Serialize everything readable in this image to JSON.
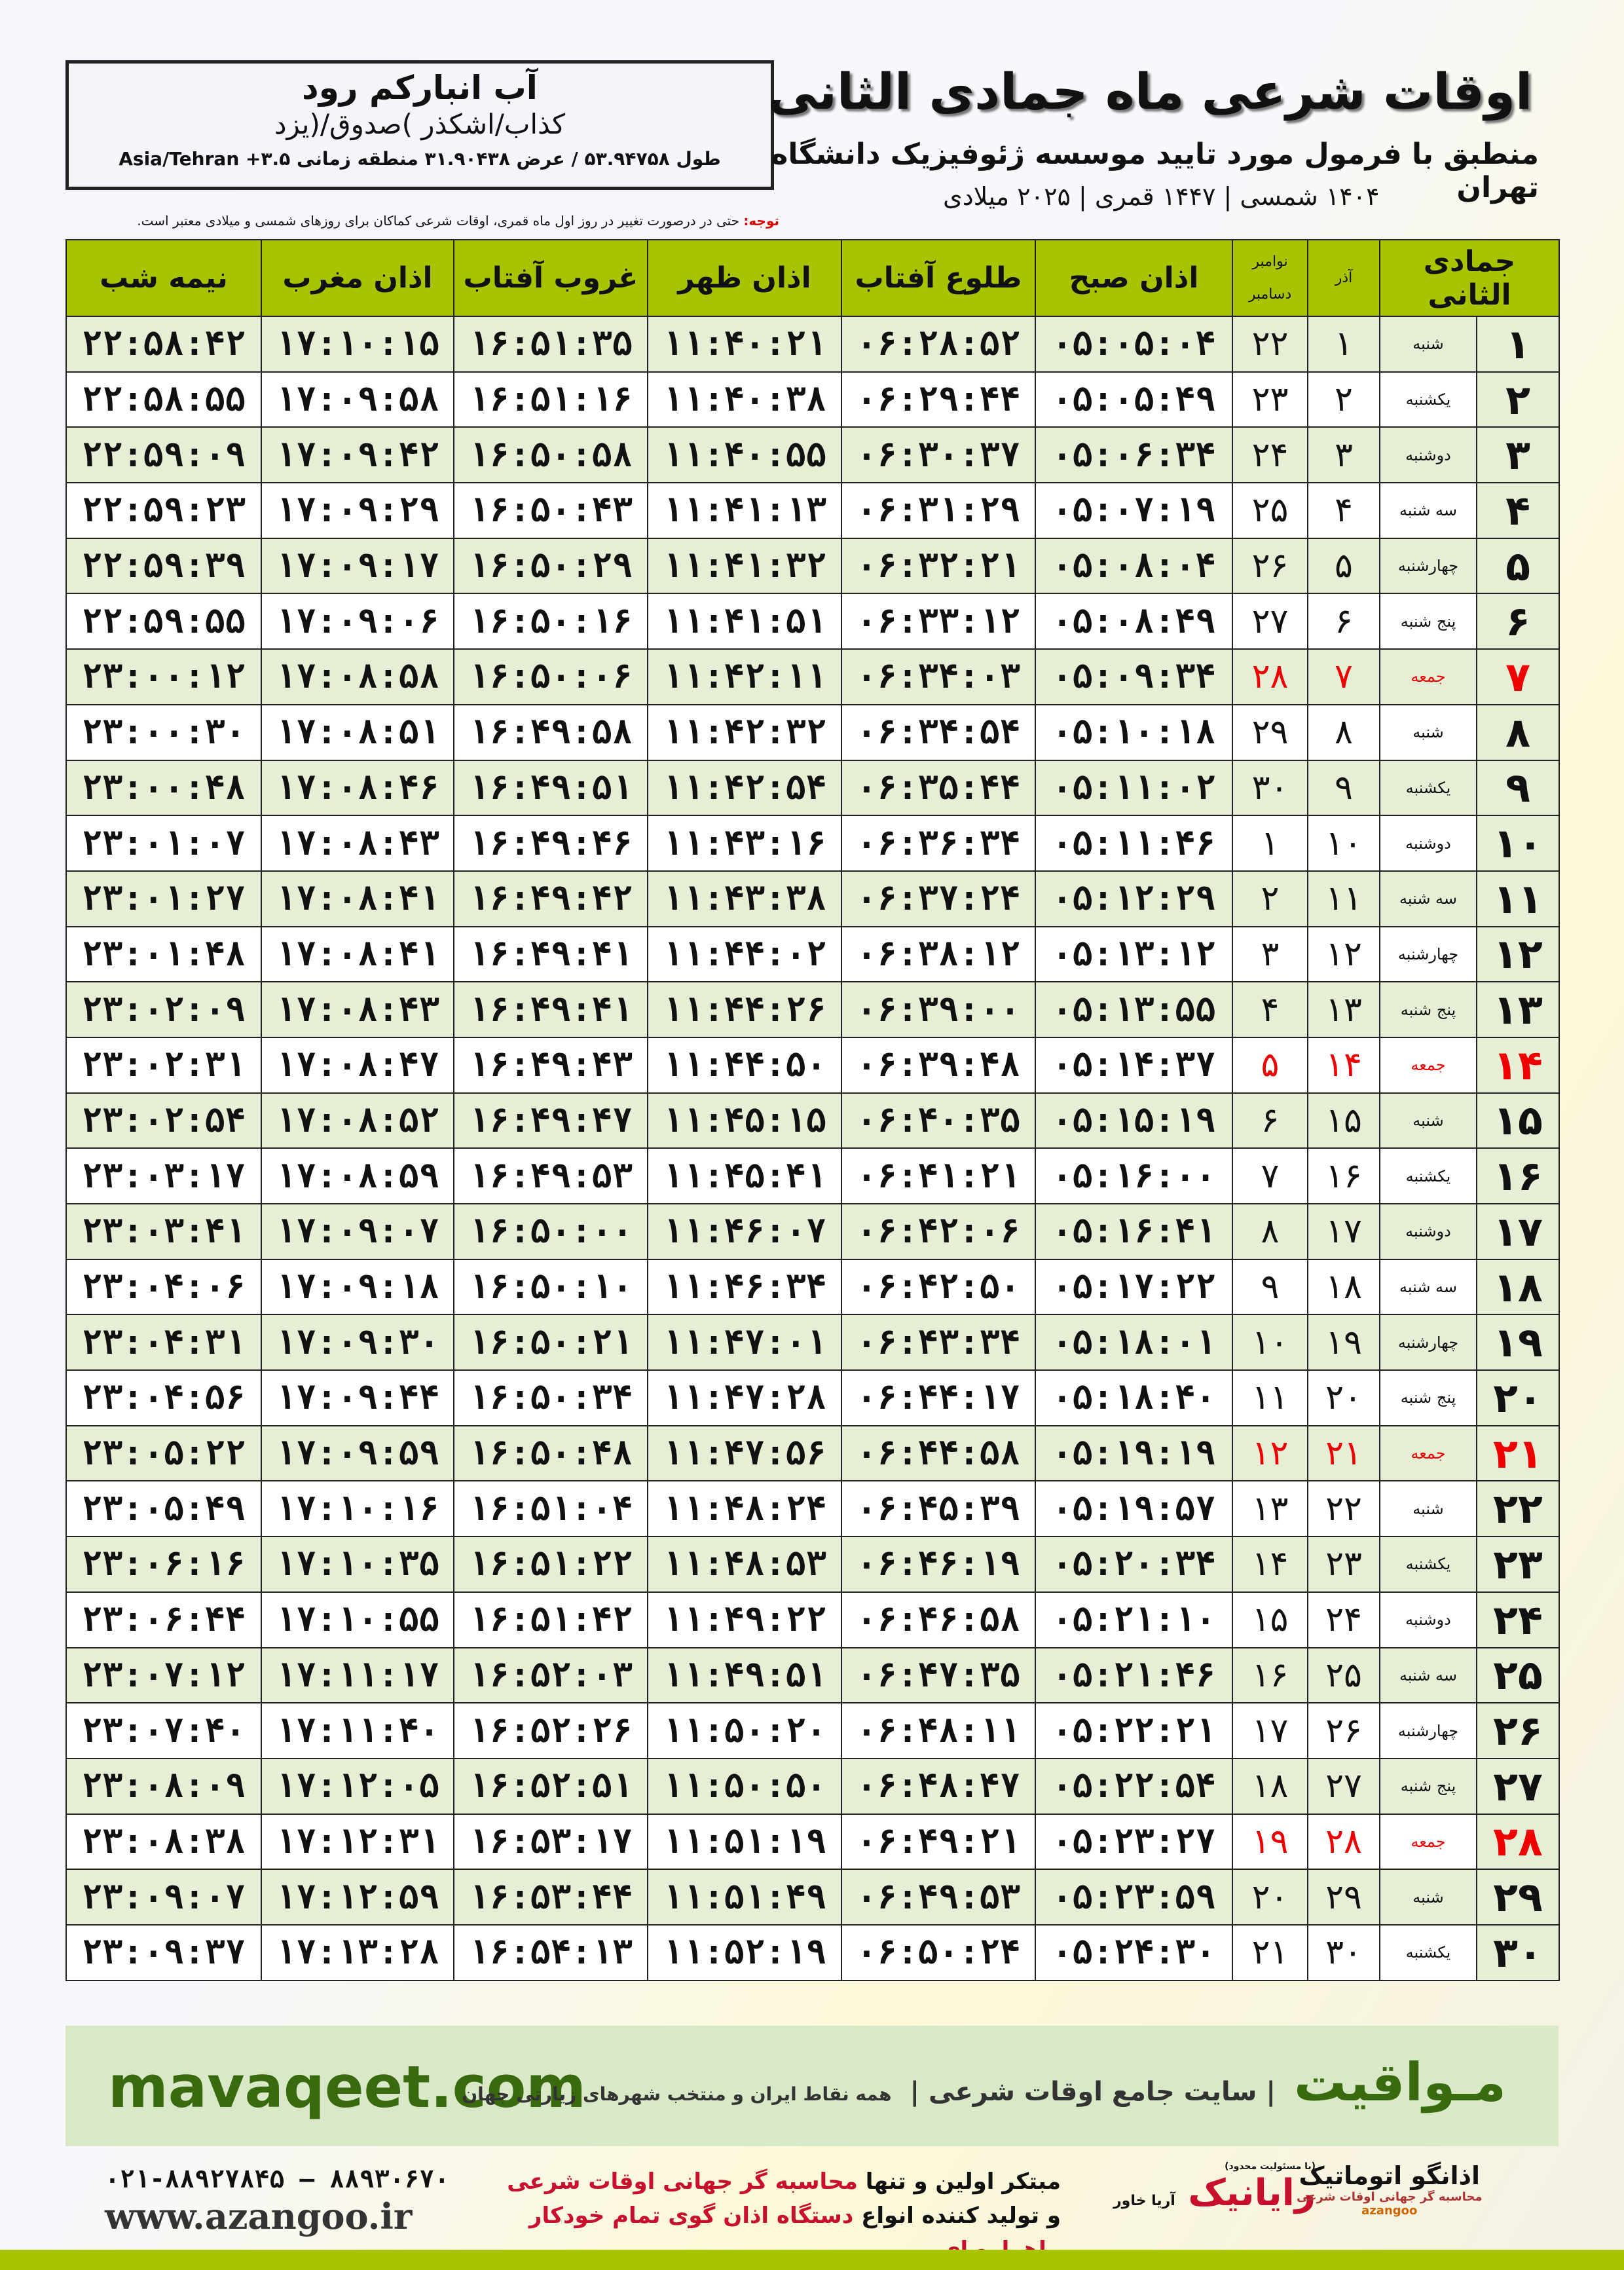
{
  "location": {
    "name": "آب انبارکم رود",
    "region": "کذاب/اشکذر )صدوق/(یزد",
    "coords": "طول ۵۳.۹۴۷۵۸ / عرض ۳۱.۹۰۴۳۸ منطقه زمانی ۳.۵+ Asia/Tehran"
  },
  "header": {
    "title": "اوقات شرعی ماه جمادی الثانی",
    "subtitle": "منطبق با فرمول مورد تایید موسسه ژئوفیزیک دانشگاه تهران",
    "years": "۱۴۰۴ شمسی | ۱۴۴۷ قمری | ۲۰۲۵ میلادی",
    "note_label": "توجه:",
    "note": " حتی در درصورت تغییر در روز اول ماه قمری، اوقات شرعی کماکان برای روزهای شمسی و میلادی معتبر است."
  },
  "colors": {
    "header_green": "#a8c400",
    "friday": "#e00000",
    "row_alt": "#e6efd6"
  },
  "table": {
    "columns": [
      "جمادی الثانی",
      "آذر",
      "نوامبر",
      "دسامبر",
      "اذان صبح",
      "طلوع آفتاب",
      "اذان ظهر",
      "غروب آفتاب",
      "اذان مغرب",
      "نیمه شب"
    ],
    "rows": [
      [
        "۱",
        "شنبه",
        "۱",
        "۲۲",
        "۰۵:۰۵:۰۴",
        "۰۶:۲۸:۵۲",
        "۱۱:۴۰:۲۱",
        "۱۶:۵۱:۳۵",
        "۱۷:۱۰:۱۵",
        "۲۲:۵۸:۴۲"
      ],
      [
        "۲",
        "یکشنبه",
        "۲",
        "۲۳",
        "۰۵:۰۵:۴۹",
        "۰۶:۲۹:۴۴",
        "۱۱:۴۰:۳۸",
        "۱۶:۵۱:۱۶",
        "۱۷:۰۹:۵۸",
        "۲۲:۵۸:۵۵"
      ],
      [
        "۳",
        "دوشنبه",
        "۳",
        "۲۴",
        "۰۵:۰۶:۳۴",
        "۰۶:۳۰:۳۷",
        "۱۱:۴۰:۵۵",
        "۱۶:۵۰:۵۸",
        "۱۷:۰۹:۴۲",
        "۲۲:۵۹:۰۹"
      ],
      [
        "۴",
        "سه شنبه",
        "۴",
        "۲۵",
        "۰۵:۰۷:۱۹",
        "۰۶:۳۱:۲۹",
        "۱۱:۴۱:۱۳",
        "۱۶:۵۰:۴۳",
        "۱۷:۰۹:۲۹",
        "۲۲:۵۹:۲۳"
      ],
      [
        "۵",
        "چهارشنبه",
        "۵",
        "۲۶",
        "۰۵:۰۸:۰۴",
        "۰۶:۳۲:۲۱",
        "۱۱:۴۱:۳۲",
        "۱۶:۵۰:۲۹",
        "۱۷:۰۹:۱۷",
        "۲۲:۵۹:۳۹"
      ],
      [
        "۶",
        "پنج شنبه",
        "۶",
        "۲۷",
        "۰۵:۰۸:۴۹",
        "۰۶:۳۳:۱۲",
        "۱۱:۴۱:۵۱",
        "۱۶:۵۰:۱۶",
        "۱۷:۰۹:۰۶",
        "۲۲:۵۹:۵۵"
      ],
      [
        "۷",
        "جمعه",
        "۷",
        "۲۸",
        "۰۵:۰۹:۳۴",
        "۰۶:۳۴:۰۳",
        "۱۱:۴۲:۱۱",
        "۱۶:۵۰:۰۶",
        "۱۷:۰۸:۵۸",
        "۲۳:۰۰:۱۲"
      ],
      [
        "۸",
        "شنبه",
        "۸",
        "۲۹",
        "۰۵:۱۰:۱۸",
        "۰۶:۳۴:۵۴",
        "۱۱:۴۲:۳۲",
        "۱۶:۴۹:۵۸",
        "۱۷:۰۸:۵۱",
        "۲۳:۰۰:۳۰"
      ],
      [
        "۹",
        "یکشنبه",
        "۹",
        "۳۰",
        "۰۵:۱۱:۰۲",
        "۰۶:۳۵:۴۴",
        "۱۱:۴۲:۵۴",
        "۱۶:۴۹:۵۱",
        "۱۷:۰۸:۴۶",
        "۲۳:۰۰:۴۸"
      ],
      [
        "۱۰",
        "دوشنبه",
        "۱۰",
        "۱",
        "۰۵:۱۱:۴۶",
        "۰۶:۳۶:۳۴",
        "۱۱:۴۳:۱۶",
        "۱۶:۴۹:۴۶",
        "۱۷:۰۸:۴۳",
        "۲۳:۰۱:۰۷"
      ],
      [
        "۱۱",
        "سه شنبه",
        "۱۱",
        "۲",
        "۰۵:۱۲:۲۹",
        "۰۶:۳۷:۲۴",
        "۱۱:۴۳:۳۸",
        "۱۶:۴۹:۴۲",
        "۱۷:۰۸:۴۱",
        "۲۳:۰۱:۲۷"
      ],
      [
        "۱۲",
        "چهارشنبه",
        "۱۲",
        "۳",
        "۰۵:۱۳:۱۲",
        "۰۶:۳۸:۱۲",
        "۱۱:۴۴:۰۲",
        "۱۶:۴۹:۴۱",
        "۱۷:۰۸:۴۱",
        "۲۳:۰۱:۴۸"
      ],
      [
        "۱۳",
        "پنج شنبه",
        "۱۳",
        "۴",
        "۰۵:۱۳:۵۵",
        "۰۶:۳۹:۰۰",
        "۱۱:۴۴:۲۶",
        "۱۶:۴۹:۴۱",
        "۱۷:۰۸:۴۳",
        "۲۳:۰۲:۰۹"
      ],
      [
        "۱۴",
        "جمعه",
        "۱۴",
        "۵",
        "۰۵:۱۴:۳۷",
        "۰۶:۳۹:۴۸",
        "۱۱:۴۴:۵۰",
        "۱۶:۴۹:۴۳",
        "۱۷:۰۸:۴۷",
        "۲۳:۰۲:۳۱"
      ],
      [
        "۱۵",
        "شنبه",
        "۱۵",
        "۶",
        "۰۵:۱۵:۱۹",
        "۰۶:۴۰:۳۵",
        "۱۱:۴۵:۱۵",
        "۱۶:۴۹:۴۷",
        "۱۷:۰۸:۵۲",
        "۲۳:۰۲:۵۴"
      ],
      [
        "۱۶",
        "یکشنبه",
        "۱۶",
        "۷",
        "۰۵:۱۶:۰۰",
        "۰۶:۴۱:۲۱",
        "۱۱:۴۵:۴۱",
        "۱۶:۴۹:۵۳",
        "۱۷:۰۸:۵۹",
        "۲۳:۰۳:۱۷"
      ],
      [
        "۱۷",
        "دوشنبه",
        "۱۷",
        "۸",
        "۰۵:۱۶:۴۱",
        "۰۶:۴۲:۰۶",
        "۱۱:۴۶:۰۷",
        "۱۶:۵۰:۰۰",
        "۱۷:۰۹:۰۷",
        "۲۳:۰۳:۴۱"
      ],
      [
        "۱۸",
        "سه شنبه",
        "۱۸",
        "۹",
        "۰۵:۱۷:۲۲",
        "۰۶:۴۲:۵۰",
        "۱۱:۴۶:۳۴",
        "۱۶:۵۰:۱۰",
        "۱۷:۰۹:۱۸",
        "۲۳:۰۴:۰۶"
      ],
      [
        "۱۹",
        "چهارشنبه",
        "۱۹",
        "۱۰",
        "۰۵:۱۸:۰۱",
        "۰۶:۴۳:۳۴",
        "۱۱:۴۷:۰۱",
        "۱۶:۵۰:۲۱",
        "۱۷:۰۹:۳۰",
        "۲۳:۰۴:۳۱"
      ],
      [
        "۲۰",
        "پنج شنبه",
        "۲۰",
        "۱۱",
        "۰۵:۱۸:۴۰",
        "۰۶:۴۴:۱۷",
        "۱۱:۴۷:۲۸",
        "۱۶:۵۰:۳۴",
        "۱۷:۰۹:۴۴",
        "۲۳:۰۴:۵۶"
      ],
      [
        "۲۱",
        "جمعه",
        "۲۱",
        "۱۲",
        "۰۵:۱۹:۱۹",
        "۰۶:۴۴:۵۸",
        "۱۱:۴۷:۵۶",
        "۱۶:۵۰:۴۸",
        "۱۷:۰۹:۵۹",
        "۲۳:۰۵:۲۲"
      ],
      [
        "۲۲",
        "شنبه",
        "۲۲",
        "۱۳",
        "۰۵:۱۹:۵۷",
        "۰۶:۴۵:۳۹",
        "۱۱:۴۸:۲۴",
        "۱۶:۵۱:۰۴",
        "۱۷:۱۰:۱۶",
        "۲۳:۰۵:۴۹"
      ],
      [
        "۲۳",
        "یکشنبه",
        "۲۳",
        "۱۴",
        "۰۵:۲۰:۳۴",
        "۰۶:۴۶:۱۹",
        "۱۱:۴۸:۵۳",
        "۱۶:۵۱:۲۲",
        "۱۷:۱۰:۳۵",
        "۲۳:۰۶:۱۶"
      ],
      [
        "۲۴",
        "دوشنبه",
        "۲۴",
        "۱۵",
        "۰۵:۲۱:۱۰",
        "۰۶:۴۶:۵۸",
        "۱۱:۴۹:۲۲",
        "۱۶:۵۱:۴۲",
        "۱۷:۱۰:۵۵",
        "۲۳:۰۶:۴۴"
      ],
      [
        "۲۵",
        "سه شنبه",
        "۲۵",
        "۱۶",
        "۰۵:۲۱:۴۶",
        "۰۶:۴۷:۳۵",
        "۱۱:۴۹:۵۱",
        "۱۶:۵۲:۰۳",
        "۱۷:۱۱:۱۷",
        "۲۳:۰۷:۱۲"
      ],
      [
        "۲۶",
        "چهارشنبه",
        "۲۶",
        "۱۷",
        "۰۵:۲۲:۲۱",
        "۰۶:۴۸:۱۱",
        "۱۱:۵۰:۲۰",
        "۱۶:۵۲:۲۶",
        "۱۷:۱۱:۴۰",
        "۲۳:۰۷:۴۰"
      ],
      [
        "۲۷",
        "پنج شنبه",
        "۲۷",
        "۱۸",
        "۰۵:۲۲:۵۴",
        "۰۶:۴۸:۴۷",
        "۱۱:۵۰:۵۰",
        "۱۶:۵۲:۵۱",
        "۱۷:۱۲:۰۵",
        "۲۳:۰۸:۰۹"
      ],
      [
        "۲۸",
        "جمعه",
        "۲۸",
        "۱۹",
        "۰۵:۲۳:۲۷",
        "۰۶:۴۹:۲۱",
        "۱۱:۵۱:۱۹",
        "۱۶:۵۳:۱۷",
        "۱۷:۱۲:۳۱",
        "۲۳:۰۸:۳۸"
      ],
      [
        "۲۹",
        "شنبه",
        "۲۹",
        "۲۰",
        "۰۵:۲۳:۵۹",
        "۰۶:۴۹:۵۳",
        "۱۱:۵۱:۴۹",
        "۱۶:۵۳:۴۴",
        "۱۷:۱۲:۵۹",
        "۲۳:۰۹:۰۷"
      ],
      [
        "۳۰",
        "یکشنبه",
        "۳۰",
        "۲۱",
        "۰۵:۲۴:۳۰",
        "۰۶:۵۰:۲۴",
        "۱۱:۵۲:۱۹",
        "۱۶:۵۴:۱۳",
        "۱۷:۱۳:۲۸",
        "۲۳:۰۹:۳۷"
      ]
    ]
  },
  "footer": {
    "site": "mavaqeet.com",
    "brand": "مـواقیت",
    "slogan": "| سایت جامع اوقات شرعی |",
    "slogan_small": "همه نقاط ایران و منتخب شهرهای زیارتی جهان",
    "phone": "۰۲۱-۸۸۹۲۷۸۴۵ – ۸۸۹۳۰۶۷۰",
    "www": "www.azangoo.ir",
    "ad_line1_a": "مبتکر اولین و تنها ",
    "ad_line1_b": "محاسبه گر جهانی اوقات شرعی",
    "ad_line2_a": "و تولید کننده انواع ",
    "ad_line2_b": "دستگاه اذان گوی تمام خودکار ماهواره ای",
    "logo_rayanik": "رایانیک",
    "logo_rayanik_sub": "آریا خاور",
    "logo_rayanik_tag": "(با مسئولیت محدود)",
    "logo_azangoo": "اذانگو اتوماتیک",
    "logo_azangoo_sub": "محاسبه گر جهانی اوقات شرعی",
    "logo_azangoo_en": "azangoo"
  }
}
